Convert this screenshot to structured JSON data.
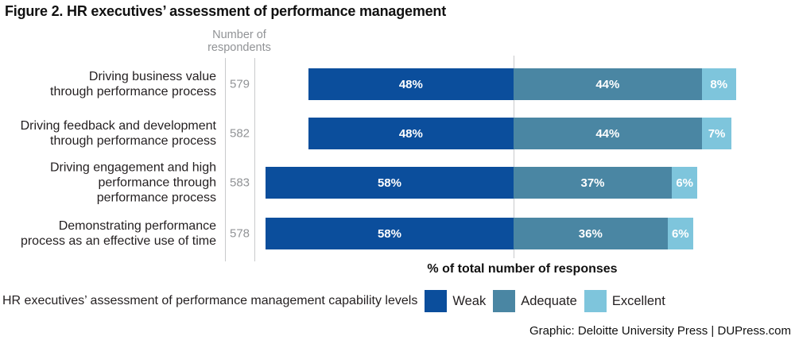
{
  "title": "Figure 2. HR executives’ assessment of performance management",
  "respondents_header": {
    "line1": "Number of",
    "line2": "respondents"
  },
  "axis_label": "% of total number of responses",
  "legend": {
    "caption": "HR executives’ assessment of performance management capability levels"
  },
  "footer": "Graphic: Deloitte University Press | DUPress.com",
  "colors": {
    "weak": "#0b4e9c",
    "adequate": "#4a86a3",
    "excellent": "#7ec5dc",
    "grid_line": "#c9cacc",
    "muted_text": "#919396",
    "bar_value_text": "#ffffff"
  },
  "chart_data": {
    "type": "bar",
    "orientation": "horizontal",
    "stacked": true,
    "title": "Figure 2. HR executives’ assessment of performance management",
    "xlabel": "% of total number of responses",
    "xlim": [
      0,
      100
    ],
    "grid": "single-vertical-line-at-weak-adequate-boundary",
    "legend_position": "bottom",
    "value_suffix": "%",
    "categories": [
      [
        "Driving business value",
        "through performance process"
      ],
      [
        "Driving feedback and development",
        "through performance process"
      ],
      [
        "Driving engagement and high",
        "performance through",
        "performance process"
      ],
      [
        "Demonstrating performance",
        "process as an effective use of time"
      ]
    ],
    "respondents": [
      579,
      582,
      583,
      578
    ],
    "series": [
      {
        "name": "Weak",
        "color": "#0b4e9c",
        "values": [
          48,
          48,
          58,
          58
        ]
      },
      {
        "name": "Adequate",
        "color": "#4a86a3",
        "values": [
          44,
          44,
          37,
          36
        ]
      },
      {
        "name": "Excellent",
        "color": "#7ec5dc",
        "values": [
          8,
          7,
          6,
          6
        ]
      }
    ]
  }
}
